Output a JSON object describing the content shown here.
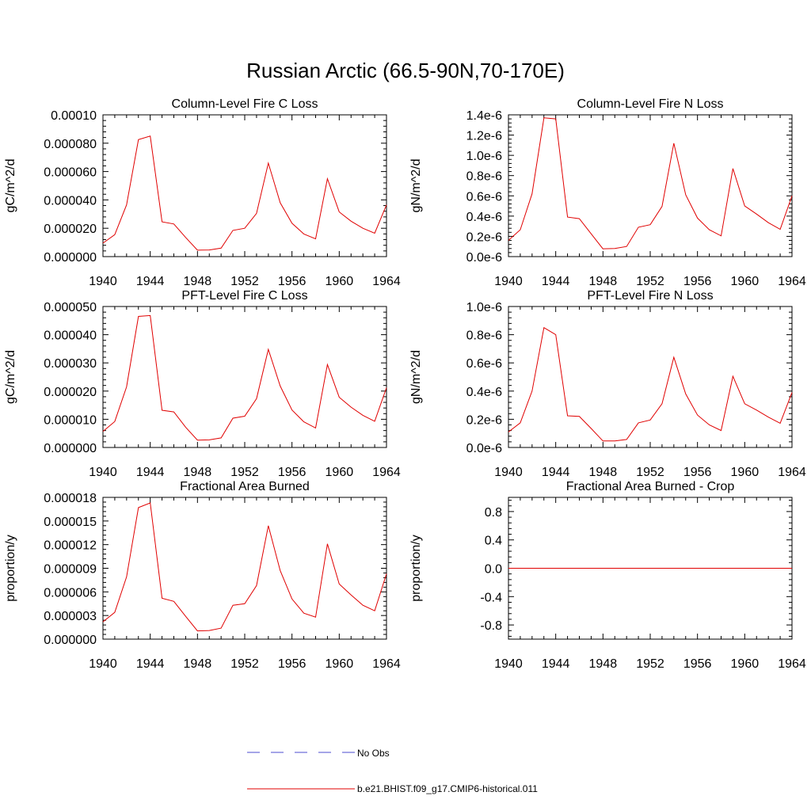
{
  "page": {
    "main_title": "Russian Arctic (66.5-90N,70-170E)"
  },
  "colors": {
    "model": "#e00000",
    "obs": "#4b4bd0",
    "axis": "#000000"
  },
  "legend": {
    "placement": "bottom-center",
    "entries": [
      {
        "label": "No Obs",
        "style": "dashed",
        "color": "#4b4bd0"
      },
      {
        "label": "b.e21.BHIST.f09_g17.CMIP6-historical.011",
        "style": "solid",
        "color": "#e00000"
      }
    ]
  },
  "chart_data": [
    {
      "type": "line",
      "title": "Column-Level Fire C Loss",
      "ylabel": "gC/m^2/d",
      "xlim": [
        1940,
        1964
      ],
      "ylim": [
        0,
        0.0001
      ],
      "x_ticks": [
        "1940",
        "1944",
        "1948",
        "1952",
        "1956",
        "1960",
        "1964"
      ],
      "y_ticks": [
        "0.000000",
        "0.000020",
        "0.000040",
        "0.000060",
        "0.000080",
        "0.00010"
      ],
      "x": [
        1940,
        1941,
        1942,
        1943,
        1944,
        1945,
        1946,
        1947,
        1948,
        1949,
        1950,
        1951,
        1952,
        1953,
        1954,
        1955,
        1956,
        1957,
        1958,
        1959,
        1960,
        1961,
        1962,
        1963,
        1964
      ],
      "series": [
        {
          "values": [
            9.5e-06,
            1.55e-05,
            3.65e-05,
            8.25e-05,
            8.5e-05,
            2.45e-05,
            2.3e-05,
            1.35e-05,
            4.5e-06,
            4.7e-06,
            6e-06,
            1.85e-05,
            2e-05,
            3.05e-05,
            6.6e-05,
            3.8e-05,
            2.35e-05,
            1.6e-05,
            1.25e-05,
            5.5e-05,
            3.15e-05,
            2.5e-05,
            2e-05,
            1.65e-05,
            3.65e-05
          ]
        }
      ]
    },
    {
      "type": "line",
      "title": "Column-Level Fire N Loss",
      "ylabel": "gN/m^2/d",
      "xlim": [
        1940,
        1964
      ],
      "ylim": [
        0,
        1.4e-06
      ],
      "x_ticks": [
        "1940",
        "1944",
        "1948",
        "1952",
        "1956",
        "1960",
        "1964"
      ],
      "y_ticks": [
        "0.0e-6",
        "0.2e-6",
        "0.4e-6",
        "0.6e-6",
        "0.8e-6",
        "1.0e-6",
        "1.2e-6",
        "1.4e-6"
      ],
      "x": [
        1940,
        1941,
        1942,
        1943,
        1944,
        1945,
        1946,
        1947,
        1948,
        1949,
        1950,
        1951,
        1952,
        1953,
        1954,
        1955,
        1956,
        1957,
        1958,
        1959,
        1960,
        1961,
        1962,
        1963,
        1964
      ],
      "series": [
        {
          "values": [
            1.6e-07,
            2.65e-07,
            6.2e-07,
            1.37e-06,
            1.36e-06,
            3.9e-07,
            3.75e-07,
            2.25e-07,
            7.7e-08,
            8e-08,
            1e-07,
            2.9e-07,
            3.15e-07,
            4.95e-07,
            1.12e-06,
            6.1e-07,
            3.8e-07,
            2.65e-07,
            2.05e-07,
            8.7e-07,
            5e-07,
            4.2e-07,
            3.35e-07,
            2.7e-07,
            6e-07
          ]
        }
      ]
    },
    {
      "type": "line",
      "title": "PFT-Level Fire C Loss",
      "ylabel": "gC/m^2/d",
      "xlim": [
        1940,
        1964
      ],
      "ylim": [
        0,
        5e-05
      ],
      "x_ticks": [
        "1940",
        "1944",
        "1948",
        "1952",
        "1956",
        "1960",
        "1964"
      ],
      "y_ticks": [
        "0.000000",
        "0.000010",
        "0.000020",
        "0.000030",
        "0.000040",
        "0.000050"
      ],
      "x": [
        1940,
        1941,
        1942,
        1943,
        1944,
        1945,
        1946,
        1947,
        1948,
        1949,
        1950,
        1951,
        1952,
        1953,
        1954,
        1955,
        1956,
        1957,
        1958,
        1959,
        1960,
        1961,
        1962,
        1963,
        1964
      ],
      "series": [
        {
          "values": [
            5.7e-06,
            9.2e-06,
            2.15e-05,
            4.65e-05,
            4.68e-05,
            1.32e-05,
            1.26e-05,
            7.2e-06,
            2.6e-06,
            2.7e-06,
            3.4e-06,
            1.04e-05,
            1.11e-05,
            1.73e-05,
            3.48e-05,
            2.18e-05,
            1.33e-05,
            9.1e-06,
            6.9e-06,
            2.94e-05,
            1.78e-05,
            1.43e-05,
            1.14e-05,
            9.3e-06,
            2.12e-05
          ]
        }
      ]
    },
    {
      "type": "line",
      "title": "PFT-Level Fire N Loss",
      "ylabel": "gN/m^2/d",
      "xlim": [
        1940,
        1964
      ],
      "ylim": [
        0,
        1e-06
      ],
      "x_ticks": [
        "1940",
        "1944",
        "1948",
        "1952",
        "1956",
        "1960",
        "1964"
      ],
      "y_ticks": [
        "0.0e-6",
        "0.2e-6",
        "0.4e-6",
        "0.6e-6",
        "0.8e-6",
        "1.0e-6"
      ],
      "x": [
        1940,
        1941,
        1942,
        1943,
        1944,
        1945,
        1946,
        1947,
        1948,
        1949,
        1950,
        1951,
        1952,
        1953,
        1954,
        1955,
        1956,
        1957,
        1958,
        1959,
        1960,
        1961,
        1962,
        1963,
        1964
      ],
      "series": [
        {
          "values": [
            1.1e-07,
            1.75e-07,
            4e-07,
            8.5e-07,
            8e-07,
            2.25e-07,
            2.2e-07,
            1.35e-07,
            4.6e-08,
            4.6e-08,
            5.7e-08,
            1.75e-07,
            1.95e-07,
            3.1e-07,
            6.4e-07,
            3.8e-07,
            2.3e-07,
            1.6e-07,
            1.2e-07,
            5.05e-07,
            3.1e-07,
            2.65e-07,
            2.15e-07,
            1.72e-07,
            3.9e-07
          ]
        }
      ]
    },
    {
      "type": "line",
      "title": "Fractional Area Burned",
      "ylabel": "proportion/y",
      "xlim": [
        1940,
        1964
      ],
      "ylim": [
        0,
        1.8e-05
      ],
      "x_ticks": [
        "1940",
        "1944",
        "1948",
        "1952",
        "1956",
        "1960",
        "1964"
      ],
      "y_ticks": [
        "0.000000",
        "0.000003",
        "0.000006",
        "0.000009",
        "0.000012",
        "0.000015",
        "0.000018"
      ],
      "x": [
        1940,
        1941,
        1942,
        1943,
        1944,
        1945,
        1946,
        1947,
        1948,
        1949,
        1950,
        1951,
        1952,
        1953,
        1954,
        1955,
        1956,
        1957,
        1958,
        1959,
        1960,
        1961,
        1962,
        1963,
        1964
      ],
      "series": [
        {
          "values": [
            2.2e-06,
            3.4e-06,
            7.9e-06,
            1.67e-05,
            1.73e-05,
            5.2e-06,
            4.8e-06,
            2.9e-06,
            1.05e-06,
            1.1e-06,
            1.4e-06,
            4.3e-06,
            4.5e-06,
            6.8e-06,
            1.44e-05,
            8.7e-06,
            5.1e-06,
            3.3e-06,
            2.8e-06,
            1.21e-05,
            7e-06,
            5.6e-06,
            4.3e-06,
            3.6e-06,
            8.3e-06
          ]
        }
      ]
    },
    {
      "type": "line",
      "title": "Fractional Area Burned - Crop",
      "ylabel": "proportion/y",
      "xlim": [
        1940,
        1964
      ],
      "ylim": [
        -1,
        1
      ],
      "x_ticks": [
        "1940",
        "1944",
        "1948",
        "1952",
        "1956",
        "1960",
        "1964"
      ],
      "y_ticks": [
        "-0.8",
        "-0.4",
        "0.0",
        "0.4",
        "0.8"
      ],
      "x": [
        1940,
        1941,
        1942,
        1943,
        1944,
        1945,
        1946,
        1947,
        1948,
        1949,
        1950,
        1951,
        1952,
        1953,
        1954,
        1955,
        1956,
        1957,
        1958,
        1959,
        1960,
        1961,
        1962,
        1963,
        1964
      ],
      "series": [
        {
          "values": [
            0,
            0,
            0,
            0,
            0,
            0,
            0,
            0,
            0,
            0,
            0,
            0,
            0,
            0,
            0,
            0,
            0,
            0,
            0,
            0,
            0,
            0,
            0,
            0,
            0
          ]
        }
      ]
    }
  ]
}
